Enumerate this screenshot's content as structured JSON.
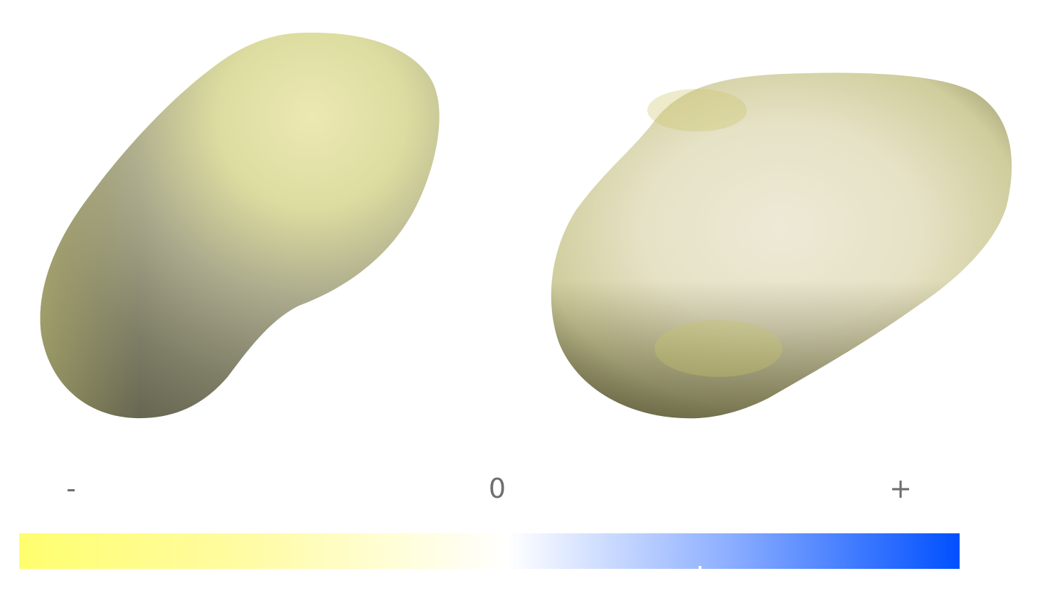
{
  "scale": {
    "min_label": "-",
    "mid_label": "0",
    "max_label": "+"
  },
  "colors": {
    "negative": "#fffe6e",
    "neutral": "#ffffff",
    "positive": "#0050ff",
    "surface_base": "#d8d8a0",
    "surface_shadow": "#5a5a3c"
  }
}
